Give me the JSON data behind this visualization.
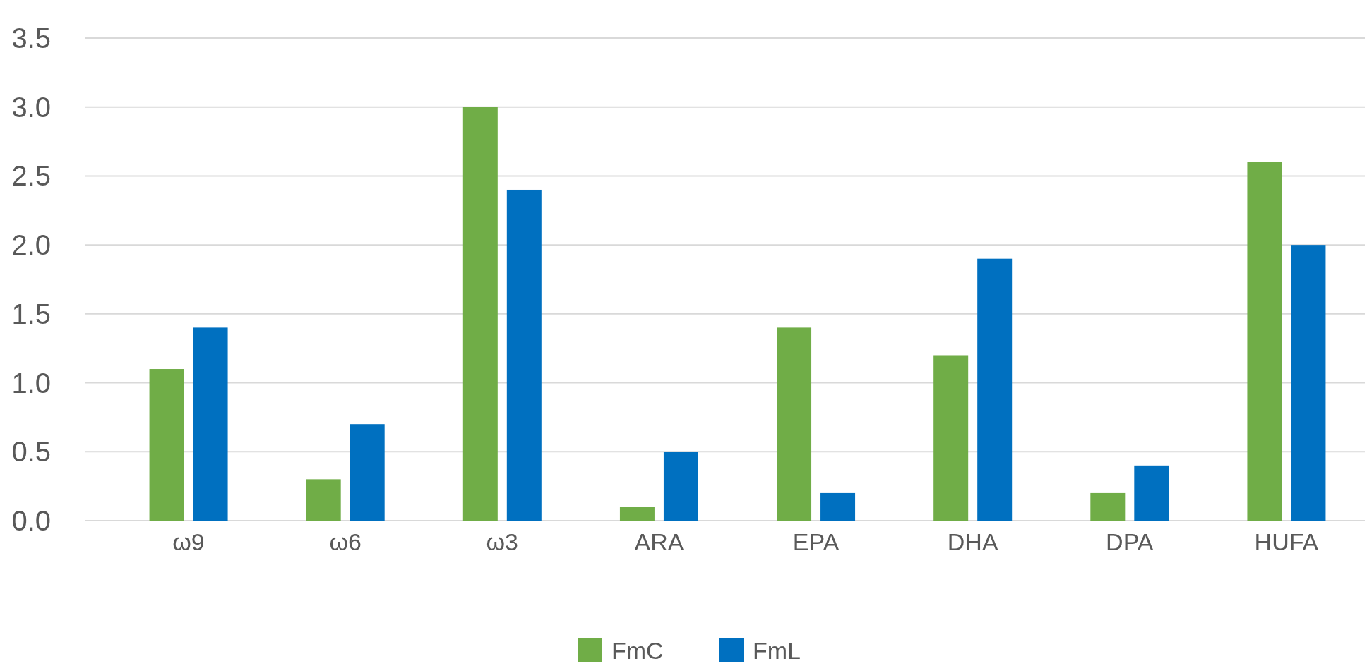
{
  "chart_data": {
    "type": "bar",
    "categories": [
      "ω9",
      "ω6",
      "ω3",
      "ARA",
      "EPA",
      "DHA",
      "DPA",
      "HUFA"
    ],
    "series": [
      {
        "name": "FmC",
        "color": "#70ad47",
        "values": [
          1.1,
          0.3,
          3.0,
          0.1,
          1.4,
          1.2,
          0.2,
          2.6
        ]
      },
      {
        "name": "FmL",
        "color": "#0070c0",
        "values": [
          1.4,
          0.7,
          2.4,
          0.5,
          0.2,
          1.9,
          0.4,
          2.0
        ]
      }
    ],
    "ylim": [
      0,
      3.5
    ],
    "yticks": [
      {
        "value": 0,
        "label": "0.0"
      },
      {
        "value": 0.5,
        "label": "0.5"
      },
      {
        "value": 1,
        "label": "1.0"
      },
      {
        "value": 1.5,
        "label": "1.5"
      },
      {
        "value": 2,
        "label": "2.0"
      },
      {
        "value": 2.5,
        "label": "2.5"
      },
      {
        "value": 3,
        "label": "3.0"
      },
      {
        "value": 3.5,
        "label": "3.5"
      }
    ],
    "grid": "y",
    "legend": "bottom"
  }
}
